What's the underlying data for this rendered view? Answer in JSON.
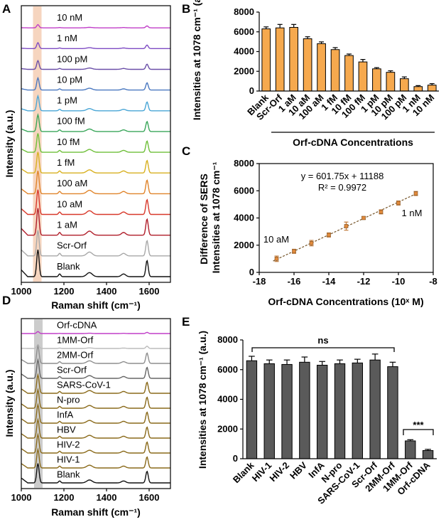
{
  "panels": {
    "A": "A",
    "B": "B",
    "C": "C",
    "D": "D",
    "E": "E"
  },
  "chart_data": [
    {
      "id": "A",
      "type": "line",
      "xlabel": "Raman shift (cm⁻¹)",
      "ylabel": "Intensity (a.u.)",
      "xlim": [
        1000,
        1700
      ],
      "xticks": [
        "1000",
        "1200",
        "1400",
        "1600"
      ],
      "highlight_band": [
        1055,
        1095
      ],
      "highlight_color": "#f6d5bf",
      "series": [
        {
          "name": "10 nM",
          "color": "#c03ec8",
          "scale": 0.12
        },
        {
          "name": "1 nM",
          "color": "#7f4cc4",
          "scale": 0.22
        },
        {
          "name": "100 pM",
          "color": "#6a4ea8",
          "scale": 0.32
        },
        {
          "name": "10 pM",
          "color": "#4a78c0",
          "scale": 0.45
        },
        {
          "name": "1 pM",
          "color": "#4aa6d6",
          "scale": 0.55
        },
        {
          "name": "100 fM",
          "color": "#3aa65a",
          "scale": 0.62
        },
        {
          "name": "10 fM",
          "color": "#6fbf3a",
          "scale": 0.7
        },
        {
          "name": "1 fM",
          "color": "#d8b020",
          "scale": 0.78
        },
        {
          "name": "100 aM",
          "color": "#e0842a",
          "scale": 0.85
        },
        {
          "name": "10 aM",
          "color": "#d8382a",
          "scale": 0.92
        },
        {
          "name": "1 aM",
          "color": "#b01e2a",
          "scale": 1.0
        },
        {
          "name": "Scr-Orf",
          "color": "#a8a8a8",
          "scale": 0.95
        },
        {
          "name": "Blank",
          "color": "#111111",
          "scale": 1.0
        }
      ]
    },
    {
      "id": "B",
      "type": "bar",
      "title": "Orf-cDNA Concentrations",
      "ylabel": "Intensities at 1078 cm⁻¹ (a.u.)",
      "ylim": [
        0,
        8000
      ],
      "yticks": [
        "0",
        "2000",
        "4000",
        "6000",
        "8000"
      ],
      "bar_color": "#f6a94e",
      "categories": [
        "Blank",
        "Scr-Orf",
        "1 aM",
        "10 aM",
        "100 aM",
        "1 fM",
        "10 fM",
        "100 fM",
        "1 pM",
        "10 pM",
        "100 pM",
        "1 nM",
        "10 nM"
      ],
      "values": [
        6300,
        6400,
        6450,
        5300,
        4800,
        4200,
        3600,
        2950,
        2250,
        1900,
        1250,
        450,
        600
      ],
      "errors": [
        200,
        350,
        300,
        200,
        180,
        200,
        150,
        250,
        120,
        150,
        180,
        100,
        150
      ]
    },
    {
      "id": "C",
      "type": "scatter",
      "xlabel": "Orf-cDNA Concentrations (10ˣ M)",
      "ylabel": "Difference of SERS Intensities at 1078 cm⁻¹",
      "xlim": [
        -18,
        -8
      ],
      "ylim": [
        0,
        8000
      ],
      "xticks": [
        "-18",
        "-16",
        "-14",
        "-12",
        "-10",
        "-8"
      ],
      "yticks": [
        "0",
        "2000",
        "4000",
        "6000",
        "8000"
      ],
      "equation": "y = 601.75x + 11188",
      "r2": "R² = 0.9972",
      "label_low": "10 aM",
      "label_high": "1 nM",
      "slope": 601.75,
      "intercept": 11188,
      "x": [
        -17,
        -16,
        -15,
        -14,
        -13,
        -12,
        -11,
        -10,
        -9
      ],
      "y": [
        1000,
        1550,
        2150,
        2750,
        3400,
        4000,
        4450,
        5100,
        5800
      ],
      "errors": [
        200,
        150,
        200,
        150,
        300,
        100,
        150,
        150,
        150
      ]
    },
    {
      "id": "D",
      "type": "line",
      "xlabel": "Raman shift (cm⁻¹)",
      "ylabel": "Intensity (a.u.)",
      "xlim": [
        1000,
        1700
      ],
      "xticks": [
        "1000",
        "1200",
        "1400",
        "1600"
      ],
      "highlight_band": [
        1060,
        1100
      ],
      "highlight_color": "#cccccc",
      "series": [
        {
          "name": "Orf-cDNA",
          "color": "#c03ec8",
          "scale": 0.1
        },
        {
          "name": "1MM-Orf",
          "color": "#bcbcbc",
          "scale": 0.2
        },
        {
          "name": "2MM-Orf",
          "color": "#8e8e8e",
          "scale": 0.9
        },
        {
          "name": "Scr-Orf",
          "color": "#666666",
          "scale": 0.95
        },
        {
          "name": "SARS-CoV-1",
          "color": "#8a6a1a",
          "scale": 0.95
        },
        {
          "name": "N-pro",
          "color": "#8a6a1a",
          "scale": 0.95
        },
        {
          "name": "InfA",
          "color": "#8a6a1a",
          "scale": 0.95
        },
        {
          "name": "HBV",
          "color": "#8a6a1a",
          "scale": 0.95
        },
        {
          "name": "HIV-2",
          "color": "#8a6a1a",
          "scale": 0.95
        },
        {
          "name": "HIV-1",
          "color": "#8a6a1a",
          "scale": 0.95
        },
        {
          "name": "Blank",
          "color": "#111111",
          "scale": 1.0
        }
      ]
    },
    {
      "id": "E",
      "type": "bar",
      "ylabel": "Intensities at 1078 cm⁻¹ (a.u.)",
      "ylim": [
        0,
        8000
      ],
      "yticks": [
        "0",
        "2000",
        "4000",
        "6000",
        "8000"
      ],
      "bar_color": "#5a5a5a",
      "categories": [
        "Blank",
        "HIV-1",
        "HIV-2",
        "HBV",
        "InfA",
        "N-pro",
        "SARS-CoV-1",
        "Scr-Orf",
        "2MM-Orf",
        "1MM-Orf",
        "Orf-cDNA"
      ],
      "values": [
        6600,
        6400,
        6350,
        6500,
        6300,
        6400,
        6450,
        6650,
        6200,
        1200,
        550
      ],
      "errors": [
        300,
        250,
        300,
        350,
        250,
        250,
        250,
        400,
        300,
        80,
        80
      ],
      "sig_ns": "ns",
      "sig_star": "***"
    }
  ]
}
